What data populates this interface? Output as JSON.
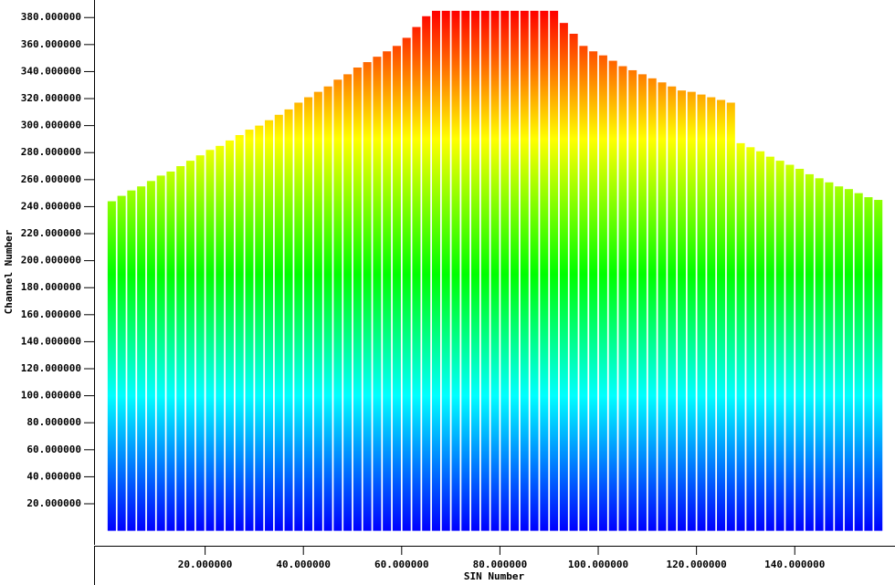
{
  "chart_data": {
    "type": "bar",
    "x_label": "SIN Number",
    "y_label": "Channel Number",
    "x": [
      1,
      3,
      5,
      7,
      9,
      11,
      13,
      15,
      17,
      19,
      21,
      23,
      25,
      27,
      29,
      31,
      33,
      35,
      37,
      39,
      41,
      43,
      45,
      47,
      49,
      51,
      53,
      55,
      57,
      59,
      61,
      63,
      65,
      67,
      69,
      71,
      73,
      75,
      77,
      79,
      81,
      83,
      85,
      87,
      89,
      91,
      93,
      95,
      97,
      99,
      101,
      103,
      105,
      107,
      109,
      111,
      113,
      115,
      117,
      119,
      121,
      123,
      125,
      127,
      129,
      131,
      133,
      135,
      137,
      139,
      141,
      143,
      145,
      147,
      149,
      151,
      153,
      155,
      157
    ],
    "values": [
      244,
      248,
      252,
      255,
      259,
      263,
      266,
      270,
      274,
      278,
      282,
      285,
      289,
      293,
      297,
      300,
      304,
      308,
      312,
      317,
      321,
      325,
      329,
      334,
      338,
      343,
      347,
      351,
      355,
      359,
      365,
      373,
      381,
      385,
      385,
      385,
      385,
      385,
      385,
      385,
      385,
      385,
      385,
      385,
      385,
      385,
      376,
      368,
      359,
      355,
      352,
      348,
      344,
      341,
      338,
      335,
      332,
      329,
      326,
      325,
      323,
      321,
      319,
      317,
      287,
      284,
      281,
      277,
      274,
      271,
      268,
      264,
      261,
      258,
      255,
      253,
      250,
      247,
      245
    ],
    "colorscale": [
      {
        "value": 0,
        "color": "#0000ff"
      },
      {
        "value": 100,
        "color": "#00ffff"
      },
      {
        "value": 190,
        "color": "#00ff00"
      },
      {
        "value": 290,
        "color": "#ffff00"
      },
      {
        "value": 385,
        "color": "#ff0000"
      }
    ],
    "xlim": [
      -2.6,
      160.4
    ],
    "ylim": [
      -10.4,
      393
    ],
    "xticks": [
      {
        "value": 20,
        "label": "20.000000"
      },
      {
        "value": 40,
        "label": "40.000000"
      },
      {
        "value": 60,
        "label": "60.000000"
      },
      {
        "value": 80,
        "label": "80.000000"
      },
      {
        "value": 100,
        "label": "100.000000"
      },
      {
        "value": 120,
        "label": "120.000000"
      },
      {
        "value": 140,
        "label": "140.000000"
      }
    ],
    "yticks": [
      {
        "value": 20,
        "label": "20.000000"
      },
      {
        "value": 40,
        "label": "40.000000"
      },
      {
        "value": 60,
        "label": "60.000000"
      },
      {
        "value": 80,
        "label": "80.000000"
      },
      {
        "value": 100,
        "label": "100.000000"
      },
      {
        "value": 120,
        "label": "120.000000"
      },
      {
        "value": 140,
        "label": "140.000000"
      },
      {
        "value": 160,
        "label": "160.000000"
      },
      {
        "value": 180,
        "label": "180.000000"
      },
      {
        "value": 200,
        "label": "200.000000"
      },
      {
        "value": 220,
        "label": "220.000000"
      },
      {
        "value": 240,
        "label": "240.000000"
      },
      {
        "value": 260,
        "label": "260.000000"
      },
      {
        "value": 280,
        "label": "280.000000"
      },
      {
        "value": 300,
        "label": "300.000000"
      },
      {
        "value": 320,
        "label": "320.000000"
      },
      {
        "value": 340,
        "label": "340.000000"
      },
      {
        "value": 360,
        "label": "360.000000"
      },
      {
        "value": 380,
        "label": "380.000000"
      }
    ]
  }
}
